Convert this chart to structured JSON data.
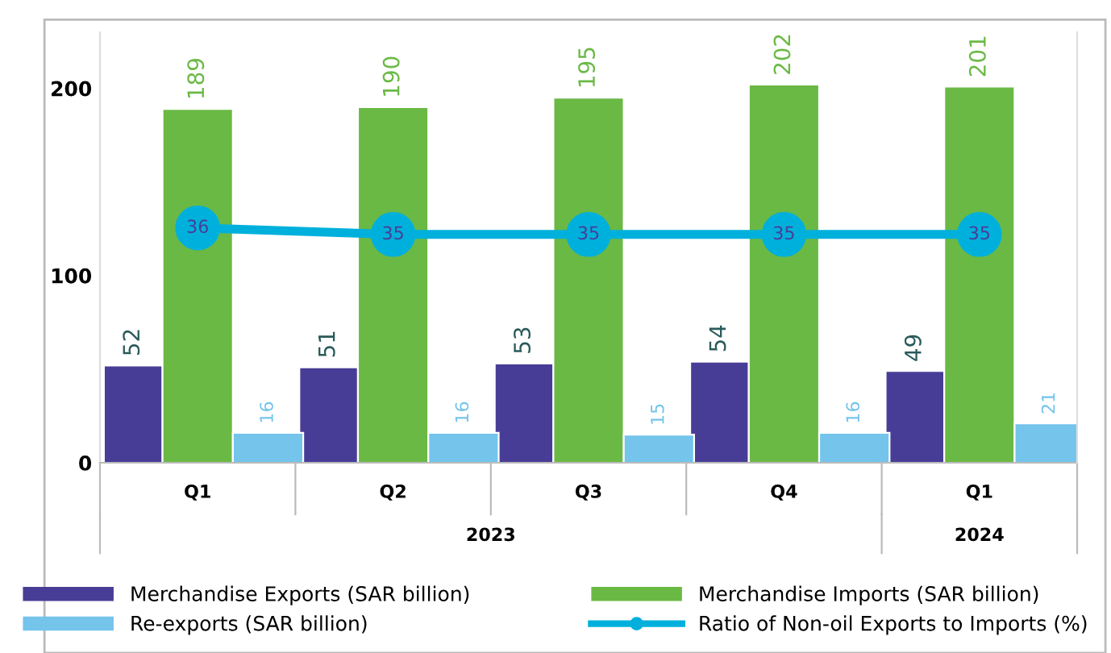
{
  "chart_data": {
    "type": "bar",
    "categories": [
      "Q1",
      "Q2",
      "Q3",
      "Q4",
      "Q1"
    ],
    "series": [
      {
        "name": "Merchandise Exports (SAR billion)",
        "color": "#483d96",
        "values": [
          52,
          51,
          53,
          54,
          49
        ]
      },
      {
        "name": "Merchandise Imports (SAR billion)",
        "color": "#6ab945",
        "values": [
          189,
          190,
          195,
          202,
          201
        ]
      },
      {
        "name": "Re-exports (SAR billion)",
        "color": "#74c4ec",
        "values": [
          16,
          16,
          15,
          16,
          21
        ]
      },
      {
        "name": "Ratio of Non-oil Exports to Imports (%)",
        "color": "#00b0dc",
        "type": "line",
        "axis": "y2",
        "marker": "circle",
        "values": [
          36,
          35,
          35,
          35,
          35
        ]
      }
    ],
    "ylim": [
      0,
      230
    ],
    "yticks": [
      0,
      100,
      200
    ],
    "y2lim": [
      0,
      66
    ],
    "annotations": [
      "2023",
      "2024"
    ],
    "data_labels": true,
    "grid": false,
    "legend": "bottom"
  }
}
